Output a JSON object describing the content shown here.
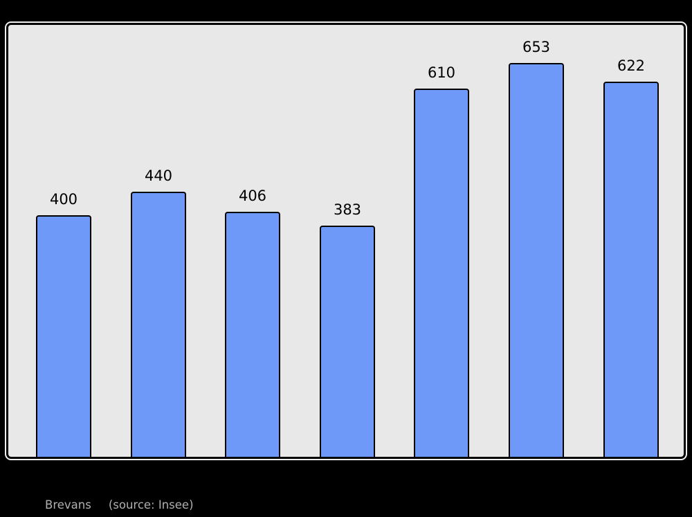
{
  "chart_data": {
    "type": "bar",
    "title": "",
    "xlabel": "",
    "ylabel": "",
    "categories": [
      "",
      "",
      "",
      "",
      "",
      "",
      ""
    ],
    "values": [
      400,
      440,
      406,
      383,
      610,
      653,
      622
    ],
    "bar_labels": [
      "400",
      "440",
      "406",
      "383",
      "610",
      "653",
      "622"
    ],
    "ylim": [
      0,
      716
    ],
    "grid": false,
    "legend": false,
    "axes_visible": false,
    "bar_color": "#6f99f8",
    "bar_border_color": "#000000",
    "plot_background": "#e8e8e8",
    "page_background": "#000000",
    "value_label_color": "#000000"
  },
  "caption": {
    "commune": "Brevans",
    "source_note": "(source: Insee)",
    "color": "#b0b0b0"
  }
}
